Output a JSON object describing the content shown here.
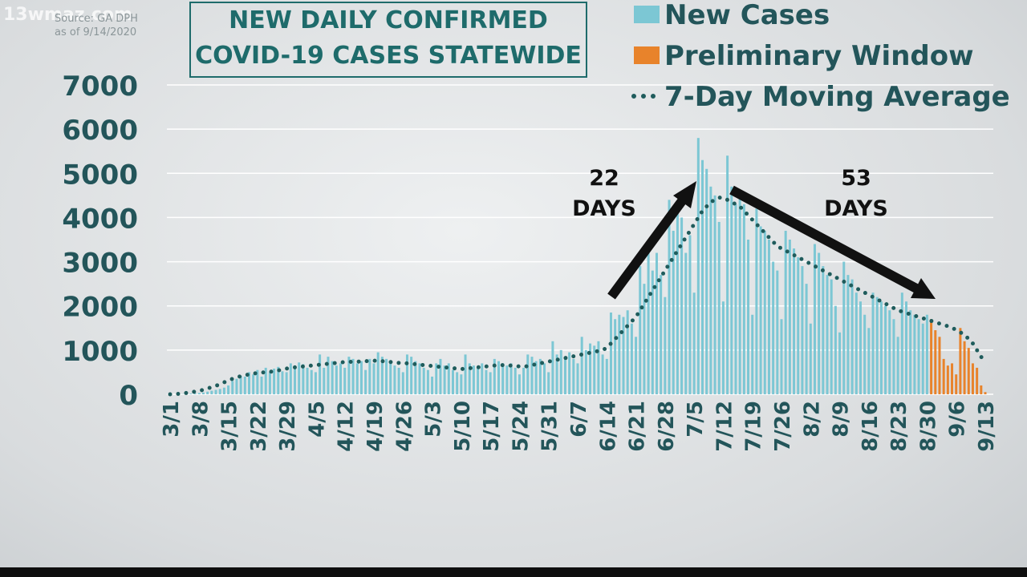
{
  "chart_data": {
    "type": "bar",
    "source": "Source: GA DPH",
    "as_of": "as of 9/14/2020",
    "watermark": "13wmaz.com",
    "title": "NEW DAILY CONFIRMED\nCOVID-19 CASES STATEWIDE",
    "annotations": [
      "22\nDAYS",
      "53\nDAYS"
    ],
    "ylim": [
      0,
      7000
    ],
    "yticks": [
      0,
      1000,
      2000,
      3000,
      4000,
      5000,
      6000,
      7000
    ],
    "grid": true,
    "categories": [
      "3/1",
      null,
      null,
      null,
      null,
      null,
      null,
      "3/8",
      null,
      null,
      null,
      null,
      null,
      null,
      "3/15",
      null,
      null,
      null,
      null,
      null,
      null,
      "3/22",
      null,
      null,
      null,
      null,
      null,
      null,
      "3/29",
      null,
      null,
      null,
      null,
      null,
      null,
      "4/5",
      null,
      null,
      null,
      null,
      null,
      null,
      "4/12",
      null,
      null,
      null,
      null,
      null,
      null,
      "4/19",
      null,
      null,
      null,
      null,
      null,
      null,
      "4/26",
      null,
      null,
      null,
      null,
      null,
      null,
      "5/3",
      null,
      null,
      null,
      null,
      null,
      null,
      "5/10",
      null,
      null,
      null,
      null,
      null,
      null,
      "5/17",
      null,
      null,
      null,
      null,
      null,
      null,
      "5/24",
      null,
      null,
      null,
      null,
      null,
      null,
      "5/31",
      null,
      null,
      null,
      null,
      null,
      null,
      "6/7",
      null,
      null,
      null,
      null,
      null,
      null,
      "6/14",
      null,
      null,
      null,
      null,
      null,
      null,
      "6/21",
      null,
      null,
      null,
      null,
      null,
      null,
      "6/28",
      null,
      null,
      null,
      null,
      null,
      null,
      "7/5",
      null,
      null,
      null,
      null,
      null,
      null,
      "7/12",
      null,
      null,
      null,
      null,
      null,
      null,
      "7/19",
      null,
      null,
      null,
      null,
      null,
      null,
      "7/26",
      null,
      null,
      null,
      null,
      null,
      null,
      "8/2",
      null,
      null,
      null,
      null,
      null,
      null,
      "8/9",
      null,
      null,
      null,
      null,
      null,
      null,
      "8/16",
      null,
      null,
      null,
      null,
      null,
      null,
      "8/23",
      null,
      null,
      null,
      null,
      null,
      null,
      "8/30",
      null,
      null,
      null,
      null,
      null,
      null,
      "9/6",
      null,
      null,
      null,
      null,
      null,
      null,
      "9/13"
    ],
    "series": [
      {
        "name": "New Cases",
        "color": "#7cc7d4",
        "type": "bar",
        "values": [
          0,
          0,
          2,
          5,
          10,
          15,
          20,
          30,
          40,
          60,
          80,
          100,
          120,
          150,
          200,
          300,
          350,
          420,
          400,
          500,
          450,
          550,
          400,
          600,
          500,
          580,
          620,
          520,
          500,
          700,
          650,
          720,
          680,
          600,
          550,
          500,
          900,
          600,
          850,
          750,
          650,
          700,
          600,
          850,
          800,
          700,
          750,
          550,
          800,
          700,
          950,
          850,
          800,
          750,
          650,
          600,
          500,
          900,
          850,
          750,
          700,
          600,
          550,
          400,
          700,
          800,
          650,
          700,
          550,
          500,
          450,
          900,
          700,
          650,
          600,
          700,
          550,
          500,
          800,
          750,
          700,
          650,
          700,
          600,
          450,
          600,
          900,
          850,
          750,
          800,
          700,
          500,
          1200,
          900,
          1000,
          850,
          950,
          800,
          700,
          1300,
          1000,
          1150,
          1100,
          1200,
          900,
          800,
          1850,
          1700,
          1800,
          1750,
          1900,
          1600,
          1300,
          2900,
          2500,
          3300,
          2800,
          3200,
          2700,
          2200,
          4400,
          3700,
          4300,
          4000,
          3200,
          3600,
          2300,
          5800,
          5300,
          5100,
          4700,
          4500,
          3900,
          2100,
          5400,
          4700,
          4300,
          4500,
          4300,
          3500,
          1800,
          4200,
          3800,
          3700,
          3500,
          3000,
          2800,
          1700,
          3700,
          3500,
          3300,
          3100,
          2900,
          2500,
          1600,
          3400,
          3200,
          2900,
          2700,
          2600,
          2000,
          1400,
          3000,
          2700,
          2600,
          2300,
          2100,
          1800,
          1500,
          2300,
          2200,
          2100,
          2000,
          1900,
          1700,
          1300,
          2300,
          2100,
          1900,
          1800,
          1700,
          1600,
          1800,
          null,
          null,
          null,
          null,
          null,
          null,
          null,
          null,
          null,
          null,
          null,
          null,
          null,
          null
        ]
      },
      {
        "name": "Preliminary Window",
        "color": "#e8832b",
        "type": "bar",
        "values": [
          null,
          null,
          null,
          null,
          null,
          null,
          null,
          null,
          null,
          null,
          null,
          null,
          null,
          null,
          null,
          null,
          null,
          null,
          null,
          null,
          null,
          null,
          null,
          null,
          null,
          null,
          null,
          null,
          null,
          null,
          null,
          null,
          null,
          null,
          null,
          null,
          null,
          null,
          null,
          null,
          null,
          null,
          null,
          null,
          null,
          null,
          null,
          null,
          null,
          null,
          null,
          null,
          null,
          null,
          null,
          null,
          null,
          null,
          null,
          null,
          null,
          null,
          null,
          null,
          null,
          null,
          null,
          null,
          null,
          null,
          null,
          null,
          null,
          null,
          null,
          null,
          null,
          null,
          null,
          null,
          null,
          null,
          null,
          null,
          null,
          null,
          null,
          null,
          null,
          null,
          null,
          null,
          null,
          null,
          null,
          null,
          null,
          null,
          null,
          null,
          null,
          null,
          null,
          null,
          null,
          null,
          null,
          null,
          null,
          null,
          null,
          null,
          null,
          null,
          null,
          null,
          null,
          null,
          null,
          null,
          null,
          null,
          null,
          null,
          null,
          null,
          null,
          null,
          null,
          null,
          null,
          null,
          null,
          null,
          null,
          null,
          null,
          null,
          null,
          null,
          null,
          null,
          null,
          null,
          null,
          null,
          null,
          null,
          null,
          null,
          null,
          null,
          null,
          null,
          null,
          null,
          null,
          null,
          null,
          null,
          null,
          null,
          null,
          null,
          null,
          null,
          null,
          null,
          null,
          null,
          null,
          null,
          null,
          null,
          null,
          null,
          null,
          null,
          null,
          null,
          null,
          null,
          null,
          1700,
          1450,
          1300,
          800,
          650,
          700,
          450,
          1500,
          1200,
          1050,
          700,
          600,
          200,
          50
        ]
      },
      {
        "name": "7-Day Moving Average",
        "color": "#1f5c5c",
        "type": "line",
        "values": [
          0,
          5,
          10,
          20,
          30,
          45,
          60,
          80,
          100,
          130,
          160,
          190,
          230,
          270,
          310,
          350,
          380,
          410,
          430,
          450,
          470,
          480,
          490,
          500,
          510,
          520,
          540,
          560,
          580,
          600,
          610,
          620,
          630,
          640,
          650,
          660,
          670,
          680,
          690,
          700,
          710,
          720,
          730,
          730,
          740,
          740,
          740,
          750,
          750,
          760,
          760,
          750,
          740,
          730,
          720,
          710,
          700,
          700,
          690,
          680,
          670,
          660,
          650,
          640,
          630,
          620,
          610,
          600,
          590,
          580,
          570,
          580,
          590,
          600,
          610,
          620,
          630,
          640,
          650,
          660,
          660,
          650,
          650,
          640,
          630,
          620,
          640,
          660,
          680,
          700,
          720,
          740,
          760,
          780,
          800,
          820,
          840,
          860,
          880,
          900,
          920,
          940,
          960,
          980,
          1000,
          1050,
          1150,
          1250,
          1350,
          1450,
          1550,
          1650,
          1750,
          1900,
          2050,
          2200,
          2350,
          2500,
          2650,
          2800,
          2950,
          3100,
          3250,
          3400,
          3550,
          3700,
          3850,
          4000,
          4150,
          4250,
          4350,
          4400,
          4450,
          4450,
          4400,
          4350,
          4300,
          4250,
          4150,
          4050,
          3950,
          3850,
          3750,
          3650,
          3550,
          3450,
          3350,
          3300,
          3250,
          3200,
          3150,
          3100,
          3050,
          3000,
          2950,
          2900,
          2850,
          2800,
          2750,
          2700,
          2650,
          2600,
          2550,
          2500,
          2450,
          2400,
          2350,
          2300,
          2250,
          2200,
          2150,
          2100,
          2050,
          2000,
          1950,
          1900,
          1870,
          1840,
          1810,
          1780,
          1750,
          1720,
          1690,
          1660,
          1630,
          1600,
          1570,
          1540,
          1510,
          1450,
          1400,
          1350,
          1250,
          1150,
          1000,
          850,
          700
        ]
      }
    ]
  }
}
